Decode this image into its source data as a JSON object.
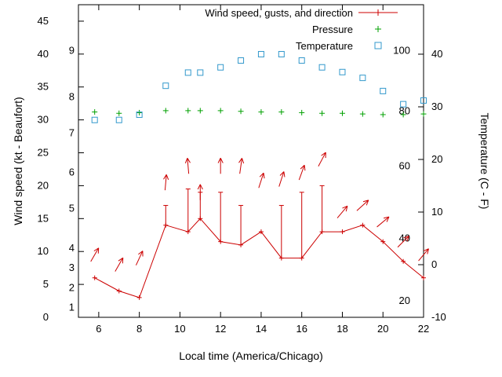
{
  "chart_data": {
    "type": "line",
    "title": "",
    "xlabel": "Local time (America/Chicago)",
    "ylabel_left": "Wind speed (kt - Beaufort)",
    "ylabel_right": "Temperature (C - F)",
    "x_axis": {
      "min": 5,
      "max": 22,
      "ticks": [
        6,
        8,
        10,
        12,
        14,
        16,
        18,
        20,
        22
      ]
    },
    "y_left": {
      "min": 0,
      "max": 47.5,
      "ticks": [
        0,
        5,
        10,
        15,
        20,
        25,
        30,
        35,
        40,
        45
      ]
    },
    "y_right": {
      "min": -10,
      "max": 49.4,
      "ticks": [
        -10,
        0,
        10,
        20,
        30,
        40
      ]
    },
    "beaufort_labels": [
      {
        "text": "1",
        "kt": 1.5
      },
      {
        "text": "2",
        "kt": 4.5
      },
      {
        "text": "3",
        "kt": 7.5
      },
      {
        "text": "4",
        "kt": 10.5
      },
      {
        "text": "5",
        "kt": 16.5
      },
      {
        "text": "6",
        "kt": 22
      },
      {
        "text": "7",
        "kt": 28
      },
      {
        "text": "8",
        "kt": 33.5
      },
      {
        "text": "9",
        "kt": 40.5
      }
    ],
    "fahrenheit_labels": [
      {
        "text": "20",
        "kt": 2.5
      },
      {
        "text": "40",
        "kt": 12
      },
      {
        "text": "60",
        "kt": 23
      },
      {
        "text": "80",
        "kt": 31.3
      },
      {
        "text": "100",
        "kt": 40.5
      }
    ],
    "x": [
      5.8,
      7,
      8,
      9.3,
      10.4,
      11,
      12,
      13,
      14,
      15,
      16,
      17,
      18,
      19,
      20,
      21,
      22
    ],
    "series": [
      {
        "id": "wind_speed",
        "label": "Wind speed (kt)",
        "color": "#cc0000",
        "values": [
          6,
          4,
          3,
          14,
          13,
          15,
          11.5,
          11,
          13,
          9,
          9,
          13,
          13,
          14,
          11.5,
          8.5,
          6
        ]
      },
      {
        "id": "wind_gusts",
        "label": "Wind gusts (kt)",
        "color": "#cc0000",
        "values": [
          null,
          null,
          null,
          17,
          19.5,
          19,
          19,
          17,
          null,
          17,
          19,
          20,
          null,
          null,
          null,
          null,
          null
        ]
      },
      {
        "id": "pressure",
        "label": "Pressure",
        "color": "#00a000",
        "values": [
          31.2,
          31.0,
          31.1,
          31.4,
          31.4,
          31.4,
          31.4,
          31.3,
          31.2,
          31.2,
          31.1,
          31.0,
          31.0,
          30.9,
          30.8,
          30.8,
          30.9
        ]
      },
      {
        "id": "temperature",
        "label": "Temperature (C)",
        "color": "#3399cc",
        "values": [
          27.5,
          27.5,
          28.5,
          34,
          36.5,
          36.5,
          37.5,
          38.8,
          40,
          40,
          38.8,
          37.5,
          36.6,
          35.5,
          33,
          30.5,
          31.2
        ]
      }
    ],
    "wind_arrows": [
      {
        "x": 5.8,
        "y_kt": 9.5,
        "angle": 60
      },
      {
        "x": 7,
        "y_kt": 8,
        "angle": 60
      },
      {
        "x": 8,
        "y_kt": 9,
        "angle": 65
      },
      {
        "x": 9.3,
        "y_kt": 20.5,
        "angle": 85
      },
      {
        "x": 10.4,
        "y_kt": 23,
        "angle": 95
      },
      {
        "x": 11,
        "y_kt": 19,
        "angle": 90
      },
      {
        "x": 12,
        "y_kt": 23,
        "angle": 90
      },
      {
        "x": 13,
        "y_kt": 23,
        "angle": 82
      },
      {
        "x": 14,
        "y_kt": 20.8,
        "angle": 72
      },
      {
        "x": 15,
        "y_kt": 21,
        "angle": 72
      },
      {
        "x": 16,
        "y_kt": 22,
        "angle": 70
      },
      {
        "x": 17,
        "y_kt": 24,
        "angle": 62
      },
      {
        "x": 18,
        "y_kt": 16,
        "angle": 50
      },
      {
        "x": 19,
        "y_kt": 17,
        "angle": 42
      },
      {
        "x": 20,
        "y_kt": 14.5,
        "angle": 40
      },
      {
        "x": 21,
        "y_kt": 11.5,
        "angle": 45
      },
      {
        "x": 22,
        "y_kt": 9.5,
        "angle": 50
      }
    ],
    "legend": [
      {
        "label": "Wind speed, gusts, and direction",
        "marker": "line-plus",
        "color": "#cc0000"
      },
      {
        "label": "Pressure",
        "marker": "plus",
        "color": "#00a000"
      },
      {
        "label": "Temperature",
        "marker": "open-square",
        "color": "#3399cc"
      }
    ],
    "colors": {
      "axis": "#000000",
      "background": "#ffffff"
    }
  }
}
